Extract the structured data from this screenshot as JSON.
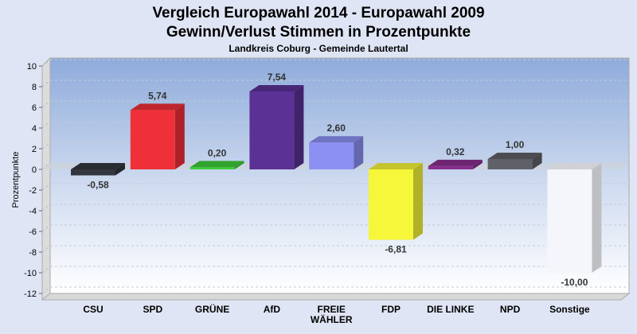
{
  "chart_data": {
    "type": "bar",
    "title": "Vergleich Europawahl 2014 - Europawahl 2009",
    "subtitle": "Gewinn/Verlust Stimmen in Prozentpunkte",
    "subtitle2": "Landkreis Coburg - Gemeinde Lautertal",
    "ylabel": "Prozentpunkte",
    "xlabel": "",
    "ylim": [
      -12,
      10
    ],
    "yticks": [
      10,
      8,
      6,
      4,
      2,
      0,
      -2,
      -4,
      -6,
      -8,
      -10,
      -12
    ],
    "grid": true,
    "categories": [
      "CSU",
      "SPD",
      "GRÜNE",
      "AfD",
      "FREIE WÄHLER",
      "FDP",
      "DIE LINKE",
      "NPD",
      "Sonstige"
    ],
    "category_lines": [
      [
        "CSU"
      ],
      [
        "SPD"
      ],
      [
        "GRÜNE"
      ],
      [
        "AfD"
      ],
      [
        "FREIE",
        "WÄHLER"
      ],
      [
        "FDP"
      ],
      [
        "DIE LINKE"
      ],
      [
        "NPD"
      ],
      [
        "Sonstige"
      ]
    ],
    "values": [
      -0.58,
      5.74,
      0.2,
      7.54,
      2.6,
      -6.81,
      0.32,
      1.0,
      -10.0
    ],
    "labels": [
      "-0,58",
      "5,74",
      "0,20",
      "7,54",
      "2,60",
      "-6,81",
      "0,32",
      "1,00",
      "-10,00"
    ],
    "colors": [
      "#33363d",
      "#ef3038",
      "#3ecc3a",
      "#5b3196",
      "#8c90f2",
      "#f6f63a",
      "#8a2f8e",
      "#606168",
      "#f4f6fb"
    ]
  }
}
